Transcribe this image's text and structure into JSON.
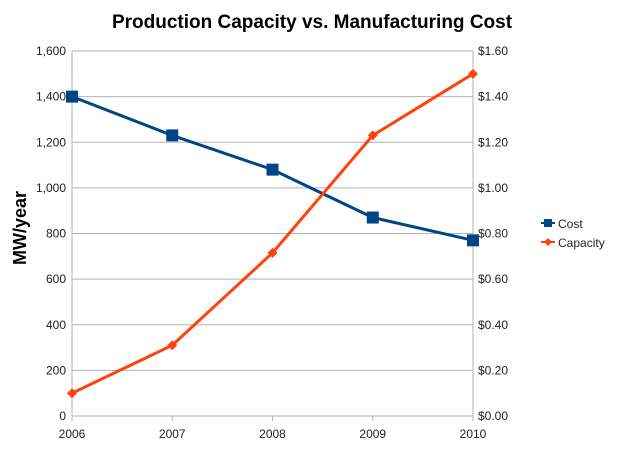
{
  "chart_data": {
    "type": "line",
    "title": "Production Capacity vs. Manufacturing Cost",
    "ylabel": "MW/year",
    "y2label": "",
    "categories": [
      "2006",
      "2007",
      "2008",
      "2009",
      "2010"
    ],
    "ylim": [
      0,
      1600
    ],
    "y2lim": [
      0,
      1.6
    ],
    "yticks": [
      "0",
      "200",
      "400",
      "600",
      "800",
      "1,000",
      "1,200",
      "1,400",
      "1,600"
    ],
    "y2ticks": [
      "$0.00",
      "$0.20",
      "$0.40",
      "$0.60",
      "$0.80",
      "$1.00",
      "$1.20",
      "$1.40",
      "$1.60"
    ],
    "grid": true,
    "legend": "right",
    "series": [
      {
        "name": "Cost",
        "axis": "right",
        "color": "#004586",
        "marker": "square",
        "values": [
          1.4,
          1.23,
          1.08,
          0.87,
          0.77
        ]
      },
      {
        "name": "Capacity",
        "axis": "left",
        "color": "#ff420e",
        "marker": "diamond",
        "values": [
          100,
          310,
          715,
          1230,
          1500
        ]
      }
    ]
  }
}
